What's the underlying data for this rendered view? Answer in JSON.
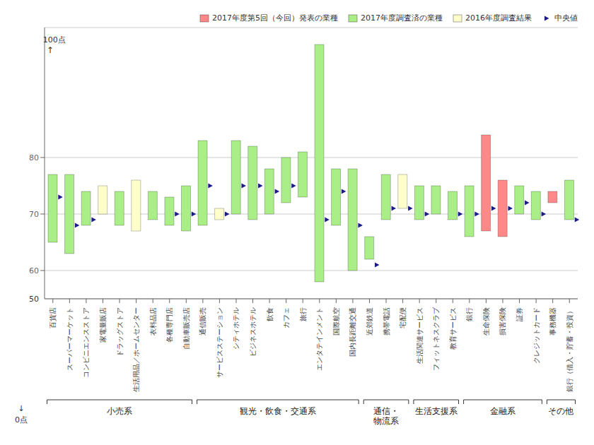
{
  "chart_data": {
    "type": "range_bar",
    "categories": [
      "百貨店",
      "スーパーマーケット",
      "コンビニエンスストア",
      "家電量販店",
      "ドラッグストア",
      "生活用品／ホームセンター",
      "衣料品店",
      "各種専門店",
      "自動車販売店",
      "通信販売",
      "サービスステーション",
      "シティホテル",
      "ビジネスホテル",
      "飲食",
      "カフェ",
      "旅行",
      "エンタテインメント",
      "国際航空",
      "国内長距離交通",
      "近郊鉄道",
      "携帯電話",
      "宅配便",
      "生活関連サービス",
      "フィットネスクラブ",
      "教育サービス",
      "銀行",
      "生命保険",
      "損害保険",
      "証券",
      "クレジットカード",
      "事務機器",
      "銀行（借入・貯蓄・投資）"
    ],
    "series": [
      {
        "name": "2017年度第5回（今回）発表の業種",
        "color": "#FF8888",
        "low": [
          null,
          null,
          null,
          null,
          null,
          null,
          null,
          null,
          null,
          null,
          null,
          null,
          null,
          null,
          null,
          null,
          null,
          null,
          null,
          null,
          null,
          null,
          null,
          null,
          null,
          null,
          67,
          66,
          null,
          null,
          72,
          null
        ],
        "high": [
          null,
          null,
          null,
          null,
          null,
          null,
          null,
          null,
          null,
          null,
          null,
          null,
          null,
          null,
          null,
          null,
          null,
          null,
          null,
          null,
          null,
          null,
          null,
          null,
          null,
          null,
          84,
          76,
          null,
          null,
          74,
          null
        ]
      },
      {
        "name": "2017年度調査済の業種",
        "color": "#AAEE88",
        "low": [
          65,
          63,
          68,
          null,
          68,
          null,
          69,
          68,
          67,
          68,
          null,
          70,
          69,
          70,
          72,
          73,
          58,
          68,
          60,
          62,
          69,
          null,
          69,
          70,
          69,
          66,
          null,
          null,
          70,
          69,
          null,
          69
        ],
        "high": [
          77,
          77,
          74,
          null,
          74,
          null,
          74,
          73,
          75,
          83,
          null,
          83,
          82,
          78,
          80,
          81,
          100,
          78,
          78,
          66,
          77,
          null,
          75,
          75,
          74,
          75,
          null,
          null,
          75,
          74,
          null,
          76
        ]
      },
      {
        "name": "2016年度調査結果",
        "color": "#FFFFCC",
        "low": [
          null,
          null,
          null,
          70,
          null,
          67,
          null,
          null,
          null,
          null,
          69,
          null,
          null,
          null,
          null,
          null,
          null,
          null,
          null,
          null,
          null,
          71,
          null,
          null,
          null,
          null,
          null,
          null,
          null,
          null,
          null,
          null
        ],
        "high": [
          null,
          null,
          null,
          75,
          null,
          76,
          null,
          null,
          null,
          null,
          71,
          null,
          null,
          null,
          null,
          null,
          null,
          null,
          null,
          null,
          null,
          77,
          null,
          null,
          null,
          null,
          null,
          null,
          null,
          null,
          null,
          null
        ]
      },
      {
        "name": "中央値",
        "type": "scatter",
        "marker": "triangle",
        "color": "#1a1a8c",
        "values": [
          73,
          68,
          69,
          null,
          null,
          null,
          null,
          70,
          70,
          75,
          70,
          75,
          75,
          74,
          75,
          null,
          69,
          74,
          68,
          61,
          71,
          71,
          70,
          null,
          70,
          70,
          71,
          71,
          72,
          70,
          null,
          69
        ]
      }
    ],
    "ylim": [
      55,
      103
    ],
    "yticks": [
      60,
      70,
      80
    ],
    "grid": true,
    "legend": "upper right",
    "groups": [
      {
        "label": "小売系",
        "start": 0,
        "end": 8
      },
      {
        "label": "観光・飲食・交通系",
        "start": 9,
        "end": 18
      },
      {
        "label": "通信・\n物流系",
        "start": 19,
        "end": 21
      },
      {
        "label": "生活支援系",
        "start": 22,
        "end": 24
      },
      {
        "label": "金融系",
        "start": 25,
        "end": 29
      },
      {
        "label": "その他",
        "start": 30,
        "end": 31
      }
    ],
    "annotations": [
      {
        "text": "100点",
        "y": 100
      },
      {
        "text": "↑"
      },
      {
        "text": "50"
      },
      {
        "text": "↓"
      },
      {
        "text": "0点"
      }
    ]
  }
}
